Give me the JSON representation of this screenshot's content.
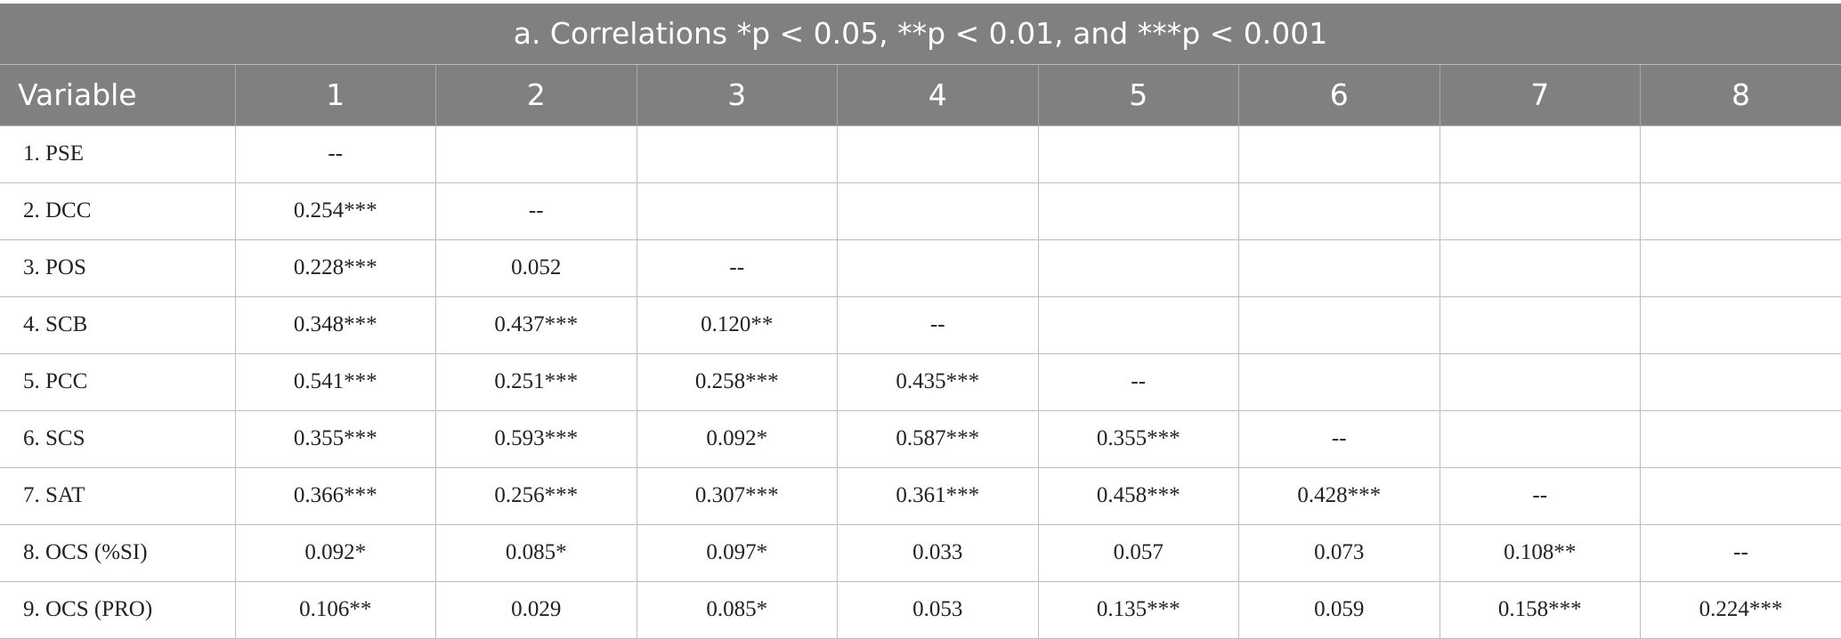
{
  "table": {
    "title": "a. Correlations *p < 0.05, **p < 0.01, and ***p < 0.001",
    "columns": [
      "Variable",
      "1",
      "2",
      "3",
      "4",
      "5",
      "6",
      "7",
      "8"
    ],
    "rows": [
      [
        "1. PSE",
        "--",
        null,
        null,
        null,
        null,
        null,
        null,
        null
      ],
      [
        "2. DCC",
        "0.254***",
        "--",
        null,
        null,
        null,
        null,
        null,
        null
      ],
      [
        "3. POS",
        "0.228***",
        "0.052",
        "--",
        null,
        null,
        null,
        null,
        null
      ],
      [
        "4. SCB",
        "0.348***",
        "0.437***",
        "0.120**",
        "--",
        null,
        null,
        null,
        null
      ],
      [
        "5. PCC",
        "0.541***",
        "0.251***",
        "0.258***",
        "0.435***",
        "--",
        null,
        null,
        null
      ],
      [
        "6. SCS",
        "0.355***",
        "0.593***",
        "0.092*",
        "0.587***",
        "0.355***",
        "--",
        null,
        null
      ],
      [
        "7. SAT",
        "0.366***",
        "0.256***",
        "0.307***",
        "0.361***",
        "0.458***",
        "0.428***",
        "--",
        null
      ],
      [
        "8. OCS (%SI)",
        "0.092*",
        "0.085*",
        "0.097*",
        "0.033",
        "0.057",
        "0.073",
        "0.108**",
        "--"
      ],
      [
        "9. OCS (PRO)",
        "0.106**",
        "0.029",
        "0.085*",
        "0.053",
        "0.135***",
        "0.059",
        "0.158***",
        "0.224***"
      ]
    ]
  }
}
